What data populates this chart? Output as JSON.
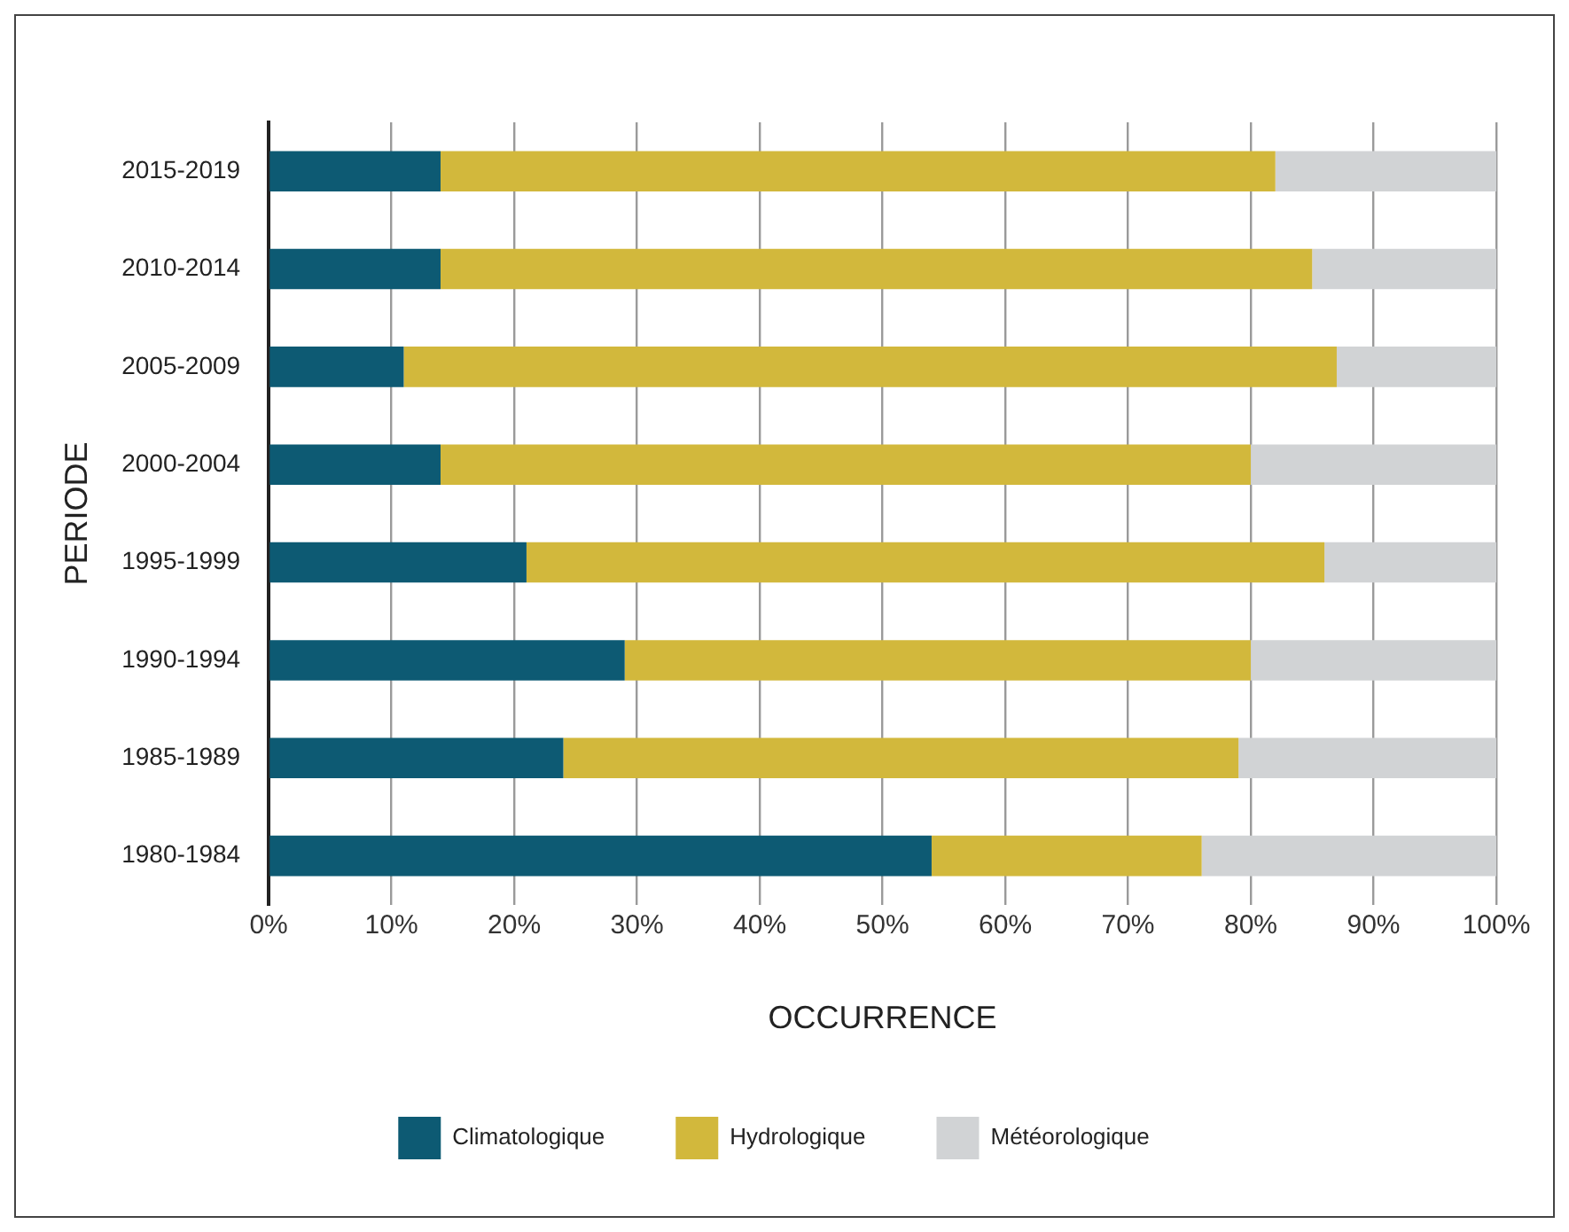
{
  "chart_data": {
    "type": "bar",
    "orientation": "horizontal",
    "stacked": true,
    "xlabel": "OCCURRENCE",
    "ylabel": "PERIODE",
    "categories": [
      "2015-2019",
      "2010-2014",
      "2005-2009",
      "2000-2004",
      "1995-1999",
      "1990-1994",
      "1985-1989",
      "1980-1984"
    ],
    "series": [
      {
        "name": "Climatologique",
        "color": "#0d5a73",
        "values": [
          14,
          14,
          11,
          14,
          21,
          29,
          24,
          54
        ]
      },
      {
        "name": "Hydrologique",
        "color": "#d2b83c",
        "values": [
          68,
          71,
          76,
          66,
          65,
          51,
          55,
          22
        ]
      },
      {
        "name": "Météorologique",
        "color": "#d1d3d5",
        "values": [
          18,
          15,
          13,
          20,
          14,
          20,
          21,
          24
        ]
      }
    ],
    "xlim": [
      0,
      100
    ],
    "xticks": [
      {
        "value": 0,
        "label": "0%"
      },
      {
        "value": 10,
        "label": "10%"
      },
      {
        "value": 20,
        "label": "20%"
      },
      {
        "value": 30,
        "label": "30%"
      },
      {
        "value": 40,
        "label": "40%"
      },
      {
        "value": 50,
        "label": "50%"
      },
      {
        "value": 60,
        "label": "60%"
      },
      {
        "value": 70,
        "label": "70%"
      },
      {
        "value": 80,
        "label": "80%"
      },
      {
        "value": 90,
        "label": "90%"
      },
      {
        "value": 100,
        "label": "100%"
      }
    ],
    "grid": "x",
    "legend": "bottom"
  }
}
